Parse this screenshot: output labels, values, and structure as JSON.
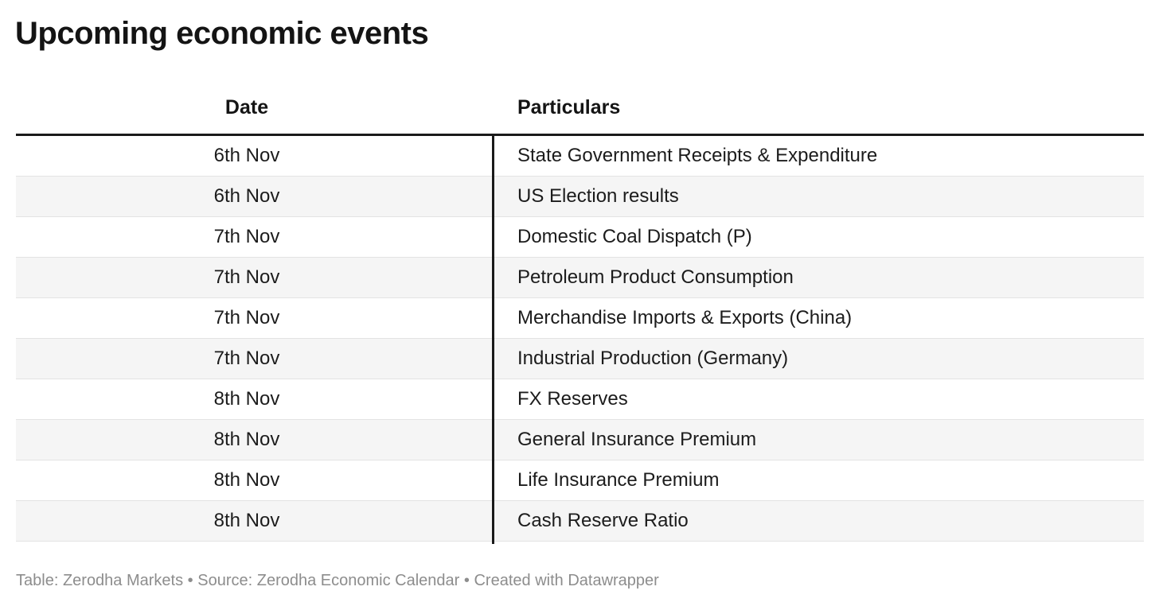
{
  "title": "Upcoming economic events",
  "chart_data": {
    "type": "table",
    "title": "Upcoming economic events",
    "columns": [
      "Date",
      "Particulars"
    ],
    "rows": [
      [
        "6th Nov",
        "State Government Receipts & Expenditure"
      ],
      [
        "6th Nov",
        "US Election results"
      ],
      [
        "7th Nov",
        "Domestic Coal Dispatch (P)"
      ],
      [
        "7th Nov",
        "Petroleum Product Consumption"
      ],
      [
        "7th Nov",
        "Merchandise Imports & Exports (China)"
      ],
      [
        "7th Nov",
        "Industrial Production (Germany)"
      ],
      [
        "8th Nov",
        "FX Reserves"
      ],
      [
        "8th Nov",
        "General Insurance Premium"
      ],
      [
        "8th Nov",
        "Life Insurance Premium"
      ],
      [
        "8th Nov",
        "Cash Reserve Ratio"
      ]
    ],
    "layout": {
      "date_column_align": "center",
      "particulars_column_align": "left",
      "zebra_striping": true,
      "header_rule": "thick black",
      "column_divider": "vertical black line"
    }
  },
  "header": {
    "date_label": "Date",
    "particulars_label": "Particulars"
  },
  "footer": {
    "table_label": "Table:",
    "table_value": "Zerodha Markets",
    "separator": "•",
    "source_label": "Source:",
    "source_value": "Zerodha Economic Calendar",
    "created_with_prefix": "Created with",
    "created_with_tool": "Datawrapper"
  },
  "colors": {
    "background": "#ffffff",
    "title_text": "#141414",
    "body_text": "#1c1c1c",
    "row_alt_background": "#f5f5f5",
    "row_separator": "#e3e3e3",
    "header_rule": "#1a1a1a",
    "column_divider": "#1a1a1a",
    "footer_text": "#8d8d8d"
  }
}
